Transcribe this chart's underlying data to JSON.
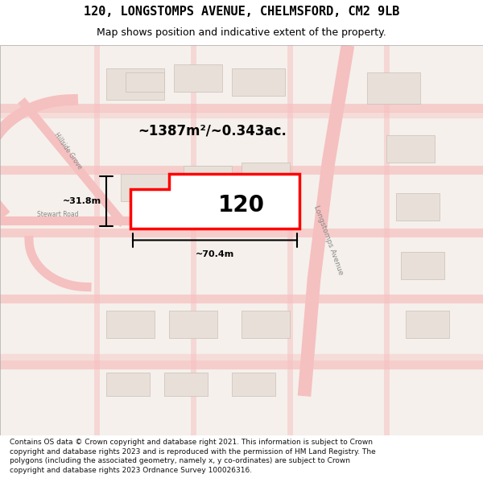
{
  "title": "120, LONGSTOMPS AVENUE, CHELMSFORD, CM2 9LB",
  "subtitle": "Map shows position and indicative extent of the property.",
  "footer": "Contains OS data © Crown copyright and database right 2021. This information is subject to Crown copyright and database rights 2023 and is reproduced with the permission of HM Land Registry. The polygons (including the associated geometry, namely x, y co-ordinates) are subject to Crown copyright and database rights 2023 Ordnance Survey 100026316.",
  "area_label": "~1387m²/~0.343ac.",
  "width_label": "~70.4m",
  "height_label": "~31.8m",
  "property_number": "120",
  "bg_color": "#f5f0eb",
  "map_bg": "#f5f0eb",
  "road_color": "#f5c0c0",
  "building_color": "#e8e0d8",
  "highlight_color": "#ff0000",
  "white_color": "#ffffff",
  "text_color": "#000000",
  "light_gray": "#d0c8c0"
}
